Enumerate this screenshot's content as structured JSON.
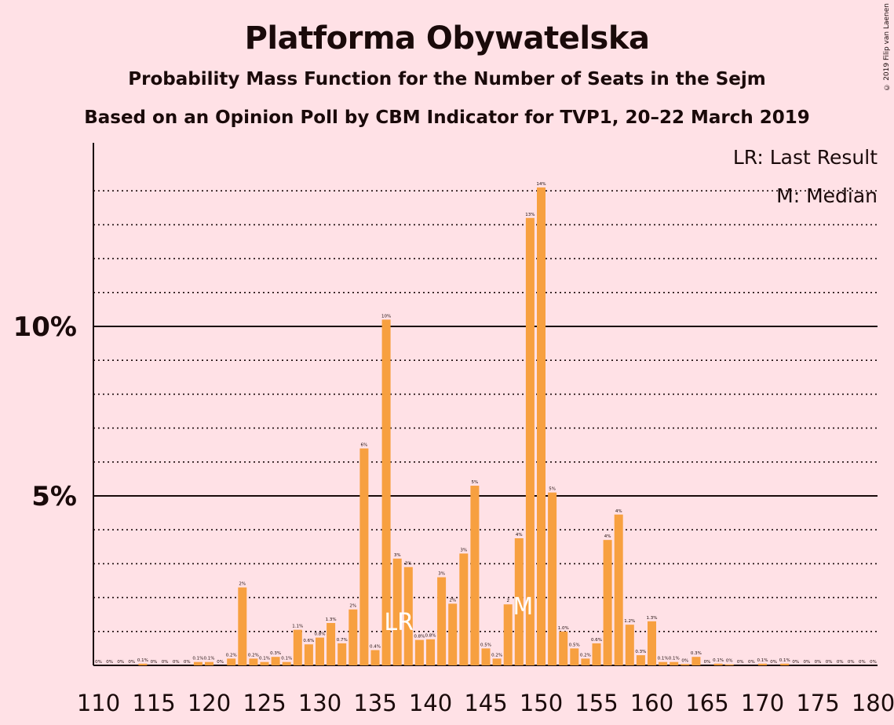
{
  "title": "Platforma Obywatelska",
  "subtitle": "Probability Mass Function for the Number of Seats in the Sejm",
  "subtitle2": "Based on an Opinion Poll by CBM Indicator for TVP1, 20–22 March 2019",
  "copyright": "© 2019 Filip van Laenen",
  "legend": {
    "lr": "LR: Last Result",
    "m": "M: Median"
  },
  "markers": {
    "lr": {
      "seat": 137,
      "label": "LR"
    },
    "median": {
      "seat": 148,
      "label": "M"
    }
  },
  "colors": {
    "bar": "#f7a040",
    "background": "#ffe1e6",
    "text": "#1a0a0a"
  },
  "chart_data": {
    "type": "bar",
    "xlim": [
      110,
      180
    ],
    "ylim": [
      0,
      15.3
    ],
    "y_ticks": [
      {
        "value": 5,
        "label": "5%"
      },
      {
        "value": 10,
        "label": "10%"
      }
    ],
    "x_ticks": [
      110,
      115,
      120,
      125,
      130,
      135,
      140,
      145,
      150,
      155,
      160,
      165,
      170,
      175,
      180
    ],
    "grid": "dotted every 1%, solid at 5% and 10%",
    "seats": [
      110,
      111,
      112,
      113,
      114,
      115,
      116,
      117,
      118,
      119,
      120,
      121,
      122,
      123,
      124,
      125,
      126,
      127,
      128,
      129,
      130,
      131,
      132,
      133,
      134,
      135,
      136,
      137,
      138,
      139,
      140,
      141,
      142,
      143,
      144,
      145,
      146,
      147,
      148,
      149,
      150,
      151,
      152,
      153,
      154,
      155,
      156,
      157,
      158,
      159,
      160,
      161,
      162,
      163,
      164,
      165,
      166,
      167,
      168,
      169,
      170,
      171,
      172,
      173,
      174,
      175,
      176,
      177,
      178,
      179,
      180
    ],
    "values": [
      0,
      0,
      0,
      0,
      0.05,
      0,
      0,
      0,
      0,
      0.1,
      0.1,
      0,
      0.2,
      2.3,
      0.2,
      0.1,
      0.25,
      0.1,
      1.05,
      0.62,
      0.82,
      1.25,
      0.65,
      1.65,
      6.4,
      0.45,
      10.2,
      3.15,
      2.9,
      0.75,
      0.77,
      2.6,
      1.82,
      3.3,
      5.3,
      0.5,
      0.2,
      1.8,
      3.75,
      13.2,
      14.1,
      5.1,
      1.0,
      0.5,
      0.2,
      0.65,
      3.7,
      4.45,
      1.2,
      0.3,
      1.3,
      0.1,
      0.1,
      0.04,
      0.25,
      0,
      0.05,
      0.03,
      0,
      0,
      0.05,
      0,
      0.05,
      0,
      0,
      0,
      0,
      0,
      0,
      0,
      0
    ],
    "labels": [
      "0%",
      "0%",
      "0%",
      "0%",
      "0.1%",
      "0%",
      "0%",
      "0%",
      "0%",
      "0.1%",
      "0.1%",
      "0%",
      "0.2%",
      "2%",
      "0.2%",
      "0.1%",
      "0.3%",
      "0.1%",
      "1.1%",
      "0.6%",
      "0.8%",
      "1.3%",
      "0.7%",
      "2%",
      "6%",
      "0.4%",
      "10%",
      "3%",
      "3%",
      "0.8%",
      "0.8%",
      "3%",
      "2%",
      "3%",
      "5%",
      "0.5%",
      "0.2%",
      "2",
      "4%",
      "13%",
      "14%",
      "5%",
      "1.0%",
      "0.5%",
      "0.2%",
      "0.6%",
      "4%",
      "4%",
      "1.2%",
      "0.3%",
      "1.3%",
      "0.1%",
      "0.1%",
      "0%",
      "0.3%",
      "0%",
      "0.1%",
      "0%",
      "0%",
      "0%",
      "0.1%",
      "0%",
      "0.1%",
      "0%",
      "0%",
      "0%",
      "0%",
      "0%",
      "0%",
      "0%",
      "0%"
    ]
  }
}
